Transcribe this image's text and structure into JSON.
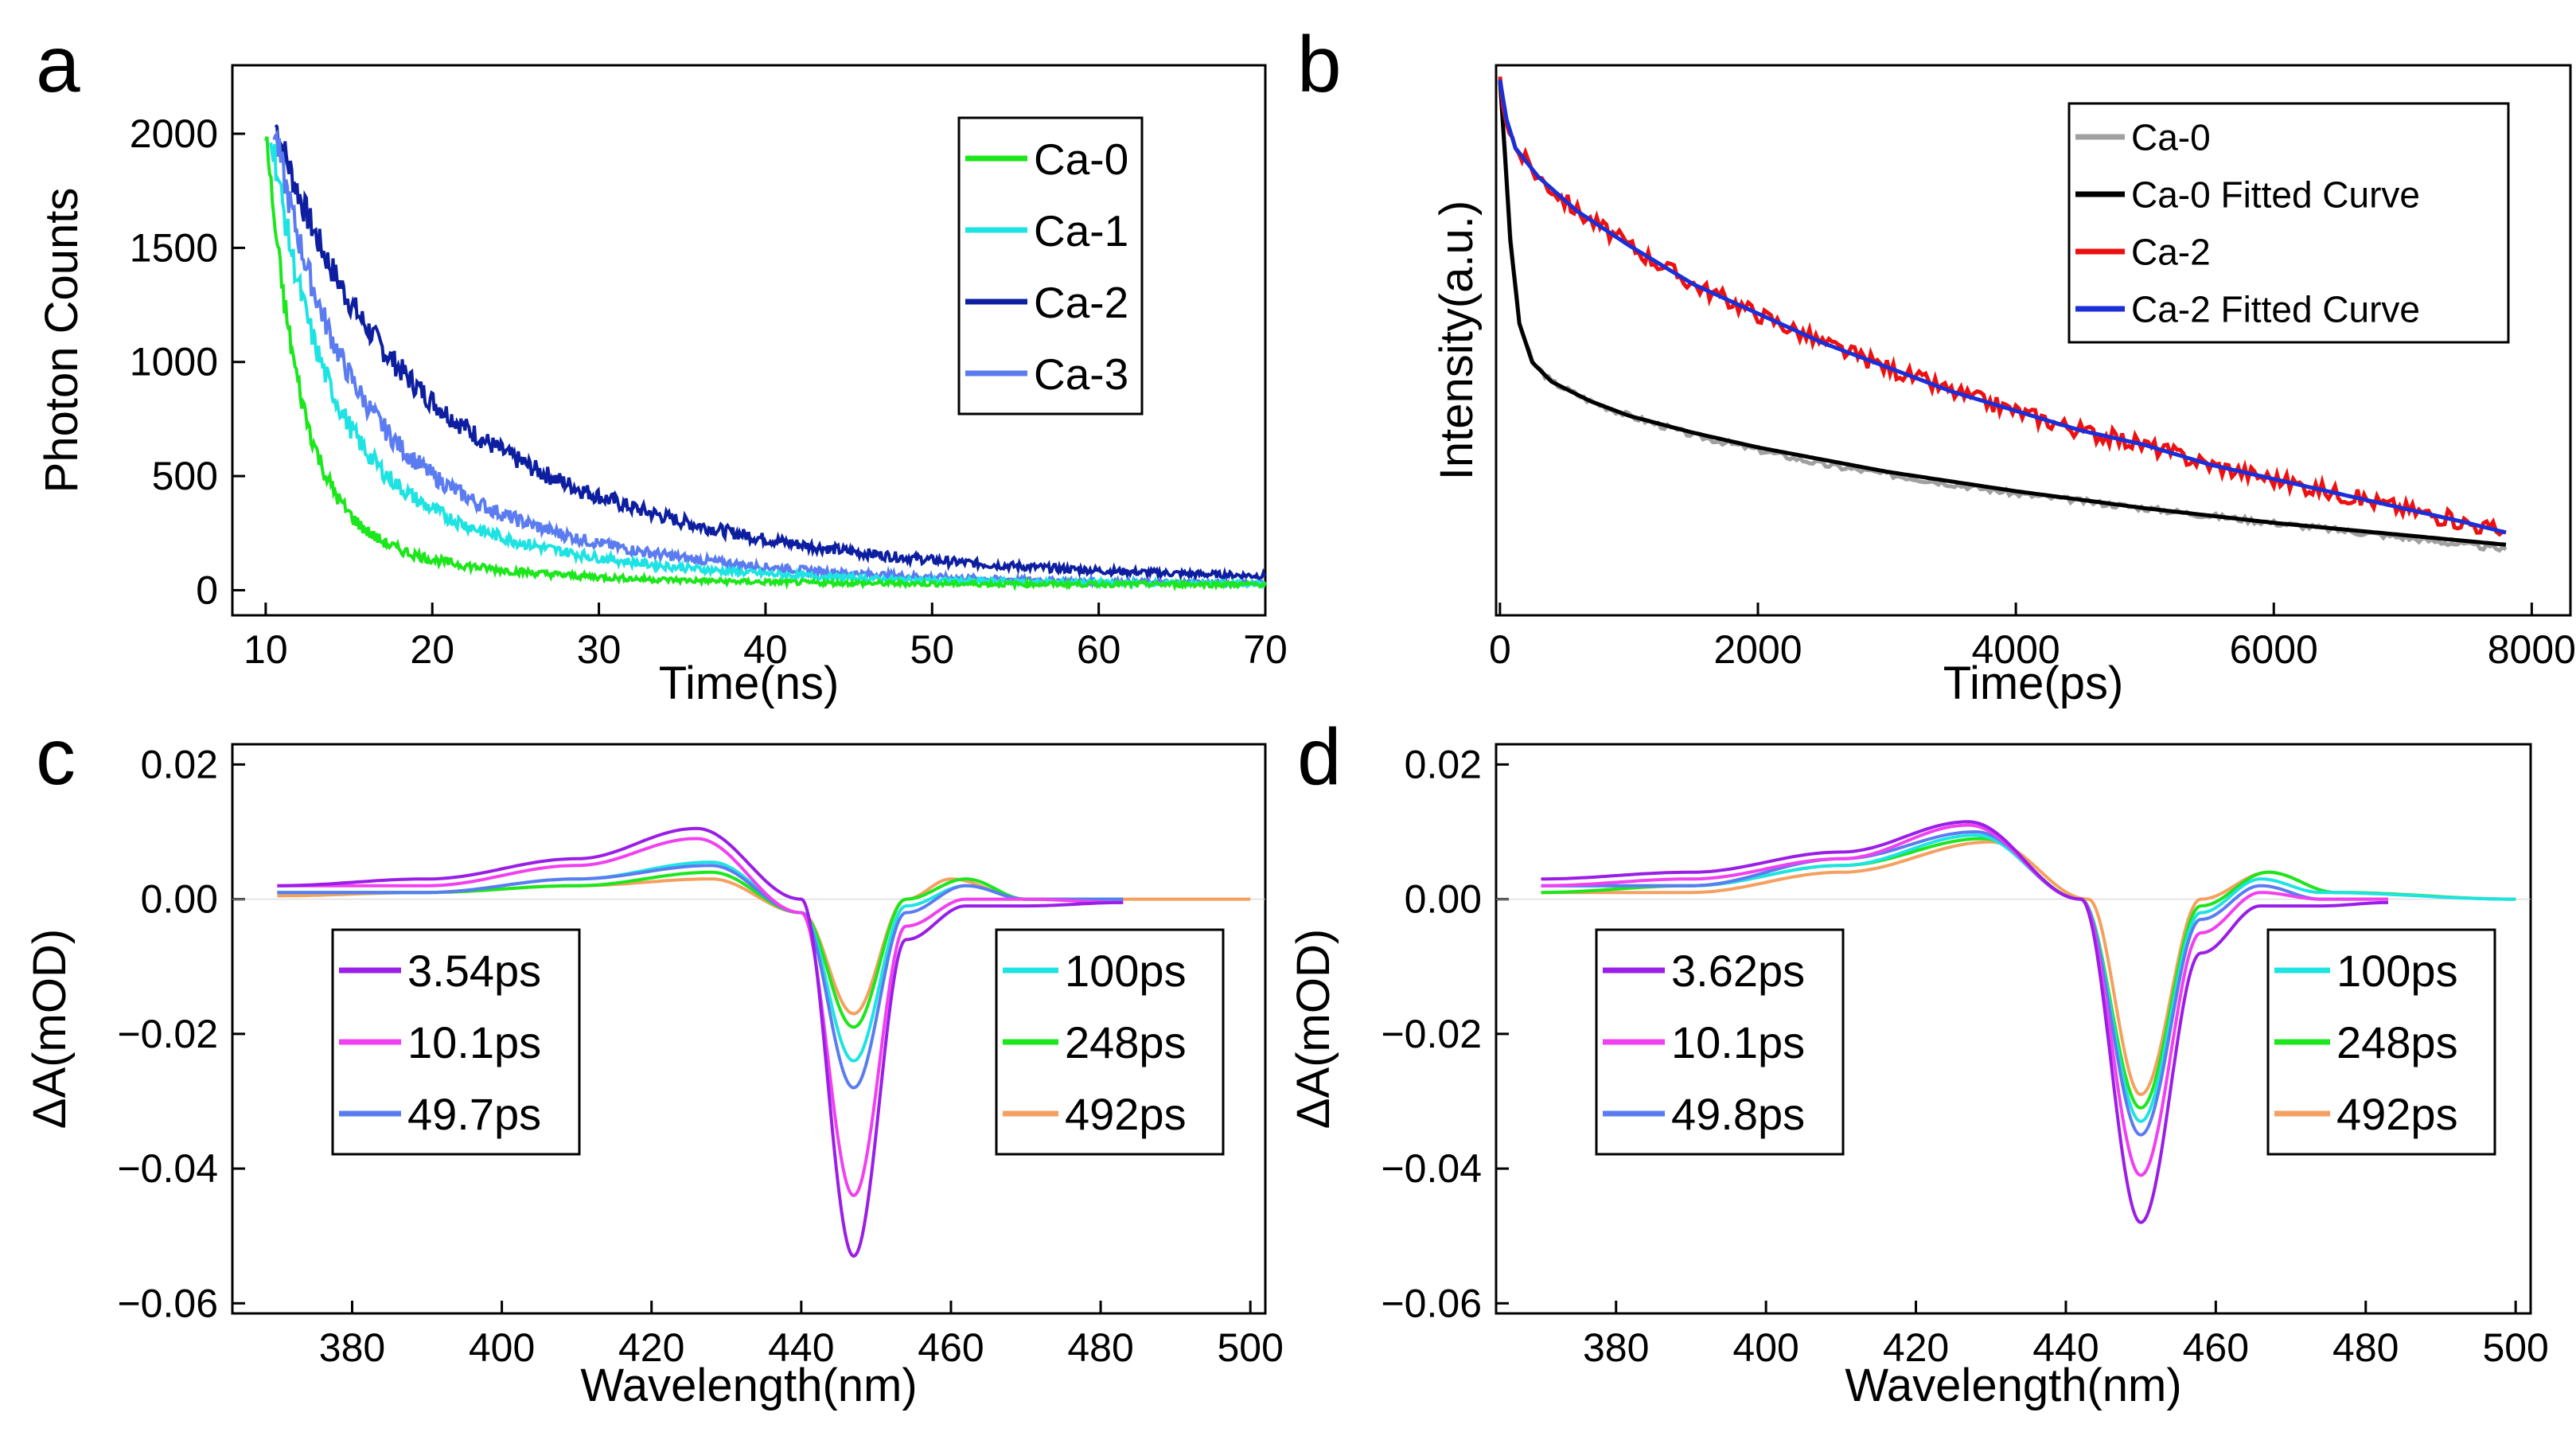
{
  "chart_data": [
    {
      "panel": "a",
      "type": "line",
      "xlabel": "Time(ns)",
      "ylabel": "Photon Counts",
      "xlim": [
        8,
        70
      ],
      "ylim": [
        -110,
        2300
      ],
      "xticks": [
        10,
        20,
        30,
        40,
        50,
        60,
        70
      ],
      "yticks": [
        0,
        500,
        1000,
        1500,
        2000
      ],
      "legend": "top-right",
      "noise": 14,
      "series": [
        {
          "name": "Ca-0",
          "color": "#1ce61c",
          "t0": 10.0,
          "amp": 2000,
          "decays": [
            [
              0.85,
              2.0
            ],
            [
              0.15,
              9.0
            ]
          ],
          "base": 25
        },
        {
          "name": "Ca-1",
          "color": "#1fe3e3",
          "t0": 10.3,
          "amp": 2000,
          "decays": [
            [
              0.65,
              2.8
            ],
            [
              0.35,
              11.0
            ]
          ],
          "base": 25
        },
        {
          "name": "Ca-2",
          "color": "#0d1fa0",
          "t0": 10.6,
          "amp": 2000,
          "decays": [
            [
              0.3,
              4.0
            ],
            [
              0.7,
              14.5
            ]
          ],
          "base": 40
        },
        {
          "name": "Ca-3",
          "color": "#5b7cf0",
          "t0": 10.5,
          "amp": 2000,
          "decays": [
            [
              0.55,
              3.5
            ],
            [
              0.45,
              12.0
            ]
          ],
          "base": 25
        }
      ]
    },
    {
      "panel": "b",
      "type": "line",
      "xlabel": "Time(ps)",
      "ylabel": "Intensity(a.u.)",
      "xlim": [
        -30,
        8300
      ],
      "ylim": [
        -0.1,
        1.03
      ],
      "xticks": [
        0,
        2000,
        4000,
        6000,
        8000
      ],
      "yticks": [],
      "legend": "top-right",
      "series": [
        {
          "name": "Ca-0",
          "color": "#a0a0a0",
          "kind": "data",
          "x": [
            0,
            40,
            80,
            150,
            250,
            400,
            700,
            1000,
            1500,
            2000,
            2500,
            3000,
            3500,
            4000,
            5000,
            6000,
            7000,
            7800
          ],
          "y": [
            1.0,
            0.85,
            0.68,
            0.5,
            0.42,
            0.38,
            0.34,
            0.31,
            0.27,
            0.24,
            0.21,
            0.19,
            0.17,
            0.15,
            0.12,
            0.09,
            0.06,
            0.035
          ]
        },
        {
          "name": "Ca-0 Fitted Curve",
          "color": "#000000",
          "kind": "fit",
          "x": [
            0,
            40,
            80,
            150,
            250,
            400,
            700,
            1000,
            1500,
            2000,
            2500,
            3000,
            3500,
            4000,
            5000,
            6000,
            7000,
            7800
          ],
          "y": [
            1.0,
            0.84,
            0.67,
            0.5,
            0.42,
            0.38,
            0.34,
            0.31,
            0.275,
            0.245,
            0.22,
            0.195,
            0.175,
            0.155,
            0.12,
            0.09,
            0.065,
            0.045
          ]
        },
        {
          "name": "Ca-2",
          "color": "#ee1010",
          "kind": "data",
          "x": [
            0,
            50,
            120,
            300,
            600,
            1000,
            1500,
            2000,
            2500,
            3000,
            3500,
            4000,
            4500,
            5000,
            5500,
            6000,
            6500,
            7000,
            7500,
            7800
          ],
          "y": [
            1.0,
            0.92,
            0.86,
            0.8,
            0.73,
            0.66,
            0.58,
            0.52,
            0.46,
            0.41,
            0.36,
            0.32,
            0.28,
            0.25,
            0.21,
            0.18,
            0.15,
            0.12,
            0.09,
            0.07
          ]
        },
        {
          "name": "Ca-2 Fitted Curve",
          "color": "#1a2fd8",
          "kind": "fit",
          "x": [
            0,
            50,
            120,
            300,
            600,
            1000,
            1500,
            2000,
            2500,
            3000,
            3500,
            4000,
            4500,
            5000,
            5500,
            6000,
            6500,
            7000,
            7500,
            7800
          ],
          "y": [
            1.0,
            0.92,
            0.86,
            0.8,
            0.73,
            0.66,
            0.58,
            0.52,
            0.46,
            0.41,
            0.36,
            0.32,
            0.28,
            0.25,
            0.21,
            0.18,
            0.15,
            0.12,
            0.09,
            0.07
          ]
        }
      ]
    },
    {
      "panel": "c",
      "type": "line",
      "xlabel": "Wavelength(nm)",
      "ylabel": "ΔA(mOD)",
      "xlim": [
        364,
        502
      ],
      "ylim": [
        -0.0615,
        0.023
      ],
      "xticks": [
        380,
        400,
        420,
        440,
        460,
        480,
        500
      ],
      "ytick_values": [
        0.02,
        0,
        -0.02,
        -0.04,
        -0.06
      ],
      "ytick_labels": [
        "0.02",
        "0.00",
        "−0.02",
        "−0.04",
        "−0.06"
      ],
      "legend_left": [
        "3.54ps",
        "10.1ps",
        "49.7ps"
      ],
      "legend_right": [
        "100ps",
        "248ps",
        "492ps"
      ],
      "series": [
        {
          "name": "3.54ps",
          "color": "#9a1ee6",
          "x": [
            370,
            390,
            410,
            426,
            440,
            447,
            454,
            462,
            470,
            483
          ],
          "y": [
            0.002,
            0.003,
            0.006,
            0.0105,
            0.0,
            -0.053,
            -0.006,
            -0.001,
            -0.001,
            -0.0005
          ]
        },
        {
          "name": "10.1ps",
          "color": "#f040f0",
          "x": [
            370,
            390,
            410,
            426,
            440,
            447,
            454,
            462,
            470,
            483
          ],
          "y": [
            0.002,
            0.002,
            0.005,
            0.009,
            -0.002,
            -0.044,
            -0.004,
            0.0,
            0.0,
            -0.0005
          ]
        },
        {
          "name": "49.7ps",
          "color": "#5b7cf0",
          "x": [
            370,
            390,
            410,
            428,
            440,
            447,
            454,
            462,
            470,
            483
          ],
          "y": [
            0.001,
            0.001,
            0.003,
            0.005,
            -0.002,
            -0.028,
            -0.002,
            0.002,
            0.0,
            0.0
          ]
        },
        {
          "name": "100ps",
          "color": "#1fe3e3",
          "x": [
            370,
            390,
            410,
            428,
            440,
            447,
            454,
            462,
            470,
            483
          ],
          "y": [
            0.001,
            0.001,
            0.003,
            0.0055,
            -0.002,
            -0.024,
            -0.001,
            0.002,
            0.0,
            0.0
          ]
        },
        {
          "name": "248ps",
          "color": "#1ce61c",
          "x": [
            370,
            390,
            410,
            428,
            440,
            447,
            454,
            462,
            470,
            483
          ],
          "y": [
            0.001,
            0.001,
            0.002,
            0.004,
            -0.002,
            -0.019,
            0.0,
            0.003,
            0.0,
            0.0
          ]
        },
        {
          "name": "492ps",
          "color": "#f5a060",
          "x": [
            370,
            390,
            410,
            428,
            440,
            447,
            454,
            460,
            470,
            500
          ],
          "y": [
            0.0005,
            0.001,
            0.002,
            0.003,
            -0.002,
            -0.017,
            0.0,
            0.003,
            0.0,
            0.0
          ]
        }
      ]
    },
    {
      "panel": "d",
      "type": "line",
      "xlabel": "Wavelength(nm)",
      "ylabel": "ΔA(mOD)",
      "xlim": [
        364,
        502
      ],
      "ylim": [
        -0.0615,
        0.023
      ],
      "xticks": [
        380,
        400,
        420,
        440,
        460,
        480,
        500
      ],
      "ytick_values": [
        0.02,
        0,
        -0.02,
        -0.04,
        -0.06
      ],
      "ytick_labels": [
        "0.02",
        "0.00",
        "−0.02",
        "−0.04",
        "−0.06"
      ],
      "legend_left": [
        "3.62ps",
        "10.1ps",
        "49.8ps"
      ],
      "legend_right": [
        "100ps",
        "248ps",
        "492ps"
      ],
      "series": [
        {
          "name": "3.62ps",
          "color": "#9a1ee6",
          "x": [
            370,
            390,
            410,
            427,
            442,
            450,
            458,
            466,
            474,
            483
          ],
          "y": [
            0.003,
            0.004,
            0.007,
            0.0115,
            0.0,
            -0.048,
            -0.008,
            -0.001,
            -0.001,
            -0.0005
          ]
        },
        {
          "name": "10.1ps",
          "color": "#f040f0",
          "x": [
            370,
            390,
            410,
            427,
            442,
            450,
            458,
            466,
            474,
            483
          ],
          "y": [
            0.002,
            0.003,
            0.006,
            0.011,
            0.0,
            -0.041,
            -0.005,
            0.001,
            0.0,
            0.0
          ]
        },
        {
          "name": "49.8ps",
          "color": "#5b7cf0",
          "x": [
            370,
            390,
            410,
            428,
            442,
            450,
            458,
            466,
            474,
            483
          ],
          "y": [
            0.002,
            0.002,
            0.006,
            0.01,
            0.0,
            -0.035,
            -0.003,
            0.002,
            0.0,
            0.0
          ]
        },
        {
          "name": "100ps",
          "color": "#1fe3e3",
          "x": [
            370,
            390,
            410,
            428,
            442,
            450,
            458,
            466,
            474,
            500
          ],
          "y": [
            0.002,
            0.002,
            0.005,
            0.0095,
            0.0,
            -0.033,
            -0.002,
            0.003,
            0.001,
            0.0
          ]
        },
        {
          "name": "248ps",
          "color": "#1ce61c",
          "x": [
            370,
            390,
            410,
            429,
            442,
            450,
            458,
            467,
            476,
            500
          ],
          "y": [
            0.001,
            0.002,
            0.005,
            0.009,
            0.0,
            -0.031,
            -0.001,
            0.004,
            0.001,
            0.0
          ]
        },
        {
          "name": "492ps",
          "color": "#f5a060",
          "x": [
            370,
            390,
            410,
            430,
            443,
            450,
            458,
            467,
            476,
            500
          ],
          "y": [
            0.001,
            0.001,
            0.004,
            0.0085,
            0.0,
            -0.029,
            0.0,
            0.004,
            0.001,
            0.0
          ]
        }
      ]
    }
  ]
}
